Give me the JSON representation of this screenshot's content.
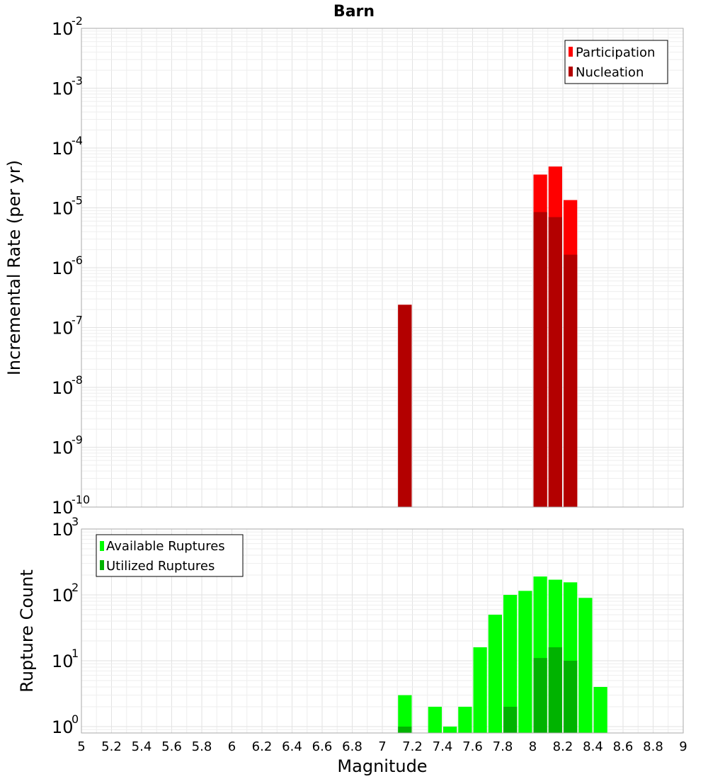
{
  "colors": {
    "participation": "#ff0000",
    "nucleation": "#b30000",
    "available": "#00ff00",
    "utilized": "#00b300"
  },
  "chart_data": [
    {
      "type": "bar",
      "title": "Barn",
      "ylabel": "Incremental Rate (per yr)",
      "xlabel": "",
      "yscale": "log",
      "ylim": [
        1e-10,
        0.01
      ],
      "xlim": [
        5,
        9
      ],
      "bin_width": 0.1,
      "y_ticks": [
        {
          "base": "10",
          "exp": "-10",
          "value": 1e-10
        },
        {
          "base": "10",
          "exp": "-9",
          "value": 1e-09
        },
        {
          "base": "10",
          "exp": "-8",
          "value": 1e-08
        },
        {
          "base": "10",
          "exp": "-7",
          "value": 1e-07
        },
        {
          "base": "10",
          "exp": "-6",
          "value": 1e-06
        },
        {
          "base": "10",
          "exp": "-5",
          "value": 1e-05
        },
        {
          "base": "10",
          "exp": "-4",
          "value": 0.0001
        },
        {
          "base": "10",
          "exp": "-3",
          "value": 0.001
        },
        {
          "base": "10",
          "exp": "-2",
          "value": 0.01
        }
      ],
      "legend": {
        "position": "top-right",
        "entries": [
          "Participation",
          "Nucleation"
        ]
      },
      "series": [
        {
          "name": "Participation",
          "color": "participation",
          "points": [
            {
              "x": 7.15,
              "y": 2.4e-07
            },
            {
              "x": 8.05,
              "y": 3.6e-05
            },
            {
              "x": 8.15,
              "y": 4.9e-05
            },
            {
              "x": 8.25,
              "y": 1.35e-05
            }
          ]
        },
        {
          "name": "Nucleation",
          "color": "nucleation",
          "points": [
            {
              "x": 7.15,
              "y": 2.4e-07
            },
            {
              "x": 8.05,
              "y": 8.5e-06
            },
            {
              "x": 8.15,
              "y": 7e-06
            },
            {
              "x": 8.25,
              "y": 1.65e-06
            }
          ]
        }
      ]
    },
    {
      "type": "bar",
      "title": "",
      "ylabel": "Rupture Count",
      "xlabel": "Magnitude",
      "yscale": "log",
      "ylim": [
        0.8,
        1000
      ],
      "xlim": [
        5,
        9
      ],
      "bin_width": 0.1,
      "x_ticks": [
        "5",
        "5.2",
        "5.4",
        "5.6",
        "5.8",
        "6",
        "6.2",
        "6.4",
        "6.6",
        "6.8",
        "7",
        "7.2",
        "7.4",
        "7.6",
        "7.8",
        "8",
        "8.2",
        "8.4",
        "8.6",
        "8.8",
        "9"
      ],
      "y_ticks": [
        {
          "base": "10",
          "exp": "0",
          "value": 1
        },
        {
          "base": "10",
          "exp": "1",
          "value": 10
        },
        {
          "base": "10",
          "exp": "2",
          "value": 100
        },
        {
          "base": "10",
          "exp": "3",
          "value": 1000
        }
      ],
      "legend": {
        "position": "top-left",
        "entries": [
          "Available Ruptures",
          "Utilized Ruptures"
        ]
      },
      "series": [
        {
          "name": "Available Ruptures",
          "color": "available",
          "points": [
            {
              "x": 7.15,
              "y": 3
            },
            {
              "x": 7.35,
              "y": 2
            },
            {
              "x": 7.45,
              "y": 1
            },
            {
              "x": 7.55,
              "y": 2
            },
            {
              "x": 7.65,
              "y": 16
            },
            {
              "x": 7.75,
              "y": 50
            },
            {
              "x": 7.85,
              "y": 100
            },
            {
              "x": 7.95,
              "y": 115
            },
            {
              "x": 8.05,
              "y": 190
            },
            {
              "x": 8.15,
              "y": 170
            },
            {
              "x": 8.25,
              "y": 155
            },
            {
              "x": 8.35,
              "y": 90
            },
            {
              "x": 8.45,
              "y": 4
            }
          ]
        },
        {
          "name": "Utilized Ruptures",
          "color": "utilized",
          "points": [
            {
              "x": 7.15,
              "y": 1
            },
            {
              "x": 7.85,
              "y": 2
            },
            {
              "x": 8.05,
              "y": 11
            },
            {
              "x": 8.15,
              "y": 16
            },
            {
              "x": 8.25,
              "y": 10
            }
          ]
        }
      ]
    }
  ]
}
